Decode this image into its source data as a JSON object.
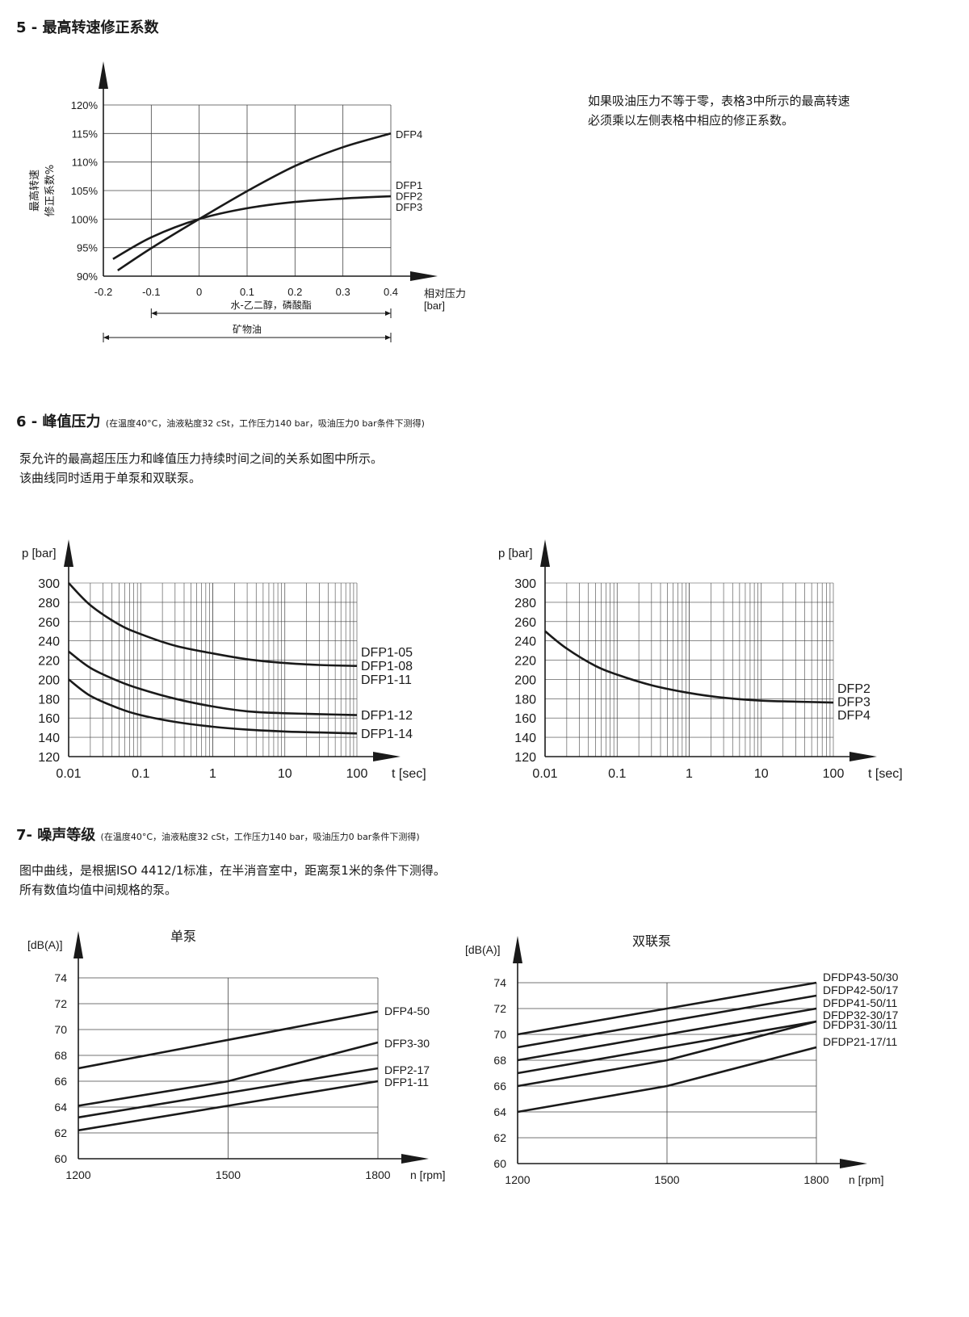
{
  "sections": {
    "s5": {
      "heading": "5 - 最高转速修正系数",
      "description": [
        "如果吸油压力不等于零，表格3中所示的最高转速",
        "必须乘以左侧表格中相应的修正系数。"
      ]
    },
    "s6": {
      "heading": "6 - 峰值压力",
      "note": "(在温度40°C，油液粘度32 cSt，工作压力140 bar，吸油压力0 bar条件下测得)",
      "description": [
        "泵允许的最高超压压力和峰值压力持续时间之间的关系如图中所示。",
        "该曲线同时适用于单泵和双联泵。"
      ]
    },
    "s7": {
      "heading": "7- 噪声等级",
      "note": "(在温度40°C，油液粘度32 cSt，工作压力140 bar，吸油压力0 bar条件下测得)",
      "description": [
        "图中曲线，是根据ISO 4412/1标准，在半消音室中，距离泵1米的条件下测得。",
        "所有数值均值中间规格的泵。"
      ]
    }
  },
  "chart_data": [
    {
      "id": "speed-correction",
      "type": "line",
      "title": "",
      "xlabel": "相对压力",
      "xunit": "[bar]",
      "ylabel": [
        "最高转速",
        "修正系数%"
      ],
      "xlim": [
        -0.2,
        0.4
      ],
      "ylim": [
        90,
        120
      ],
      "xticks": [
        -0.2,
        -0.1,
        0,
        0.1,
        0.2,
        0.3,
        0.4
      ],
      "xtick_labels": [
        "-0.2",
        "-0.1",
        "0",
        "0.1",
        "0.2",
        "0.3",
        "0.4"
      ],
      "yticks": [
        90,
        95,
        100,
        105,
        110,
        115,
        120
      ],
      "ytick_labels": [
        "90%",
        "95%",
        "100%",
        "105%",
        "110%",
        "115%",
        "120%"
      ],
      "grid": true,
      "series": [
        {
          "name": "DFP4",
          "labels": [
            "DFP4"
          ],
          "x": [
            -0.17,
            -0.1,
            0,
            0.1,
            0.2,
            0.3,
            0.4
          ],
          "y": [
            91,
            94.9,
            100,
            104.9,
            109.3,
            112.6,
            115
          ]
        },
        {
          "name": "DFP1 / DFP2 / DFP3",
          "labels": [
            "DFP1",
            "DFP2",
            "DFP3"
          ],
          "x": [
            -0.18,
            -0.1,
            0,
            0.1,
            0.2,
            0.3,
            0.4
          ],
          "y": [
            93,
            96.8,
            100,
            101.9,
            103,
            103.6,
            104
          ]
        }
      ],
      "ranges": [
        {
          "label": "水-乙二醇，磷酸酯",
          "from": -0.1,
          "to": 0.4
        },
        {
          "label": "矿物油",
          "from": -0.2,
          "to": 0.4
        }
      ]
    },
    {
      "id": "peak-pressure-single",
      "type": "line",
      "xscale": "log",
      "title": "",
      "xlabel": "t [sec]",
      "ylabel": "p [bar]",
      "xlim": [
        0.01,
        100
      ],
      "ylim": [
        120,
        300
      ],
      "xtick_labels": [
        "0.01",
        "0.1",
        "1",
        "10",
        "100"
      ],
      "yticks": [
        120,
        140,
        160,
        180,
        200,
        220,
        240,
        260,
        280,
        300
      ],
      "grid": true,
      "series": [
        {
          "name": "DFP1-05 / DFP1-08",
          "labels": [
            "DFP1-05",
            "DFP1-08"
          ],
          "x": [
            0.01,
            0.02,
            0.05,
            0.1,
            0.3,
            1,
            3,
            10,
            30,
            100
          ],
          "y": [
            300,
            277,
            257,
            247,
            235,
            227,
            221,
            217,
            215,
            214
          ]
        },
        {
          "name": "DFP1-11 / DFP1-12",
          "labels": [
            "DFP1-11",
            "DFP1-12"
          ],
          "x": [
            0.01,
            0.02,
            0.05,
            0.1,
            0.3,
            1,
            3,
            10,
            30,
            100
          ],
          "y": [
            229,
            212,
            198,
            190,
            180,
            172,
            167,
            165,
            164,
            163
          ]
        },
        {
          "name": "DFP1-14",
          "labels": [
            "DFP1-14"
          ],
          "x": [
            0.01,
            0.02,
            0.05,
            0.1,
            0.3,
            1,
            3,
            10,
            30,
            100
          ],
          "y": [
            200,
            183,
            170,
            163,
            156,
            151,
            148,
            146,
            145,
            144
          ]
        }
      ]
    },
    {
      "id": "peak-pressure-double",
      "type": "line",
      "xscale": "log",
      "title": "",
      "xlabel": "t [sec]",
      "ylabel": "p [bar]",
      "xlim": [
        0.01,
        100
      ],
      "ylim": [
        120,
        300
      ],
      "xtick_labels": [
        "0.01",
        "0.1",
        "1",
        "10",
        "100"
      ],
      "yticks": [
        120,
        140,
        160,
        180,
        200,
        220,
        240,
        260,
        280,
        300
      ],
      "grid": true,
      "series": [
        {
          "name": "DFP2 / DFP3 / DFP4",
          "labels": [
            "DFP2",
            "DFP3",
            "DFP4"
          ],
          "x": [
            0.01,
            0.02,
            0.05,
            0.1,
            0.3,
            1,
            3,
            10,
            30,
            100
          ],
          "y": [
            250,
            232,
            214,
            205,
            194,
            186,
            181,
            178,
            177,
            176
          ]
        }
      ]
    },
    {
      "id": "noise-single",
      "type": "line",
      "title": "单泵",
      "xlabel": "n [rpm]",
      "ylabel": "[dB(A)]",
      "xlim": [
        1200,
        1800
      ],
      "ylim": [
        60,
        74
      ],
      "xticks": [
        1200,
        1500,
        1800
      ],
      "xtick_labels": [
        "1200",
        "1500",
        "1800"
      ],
      "yticks": [
        60,
        62,
        64,
        66,
        68,
        70,
        72,
        74
      ],
      "grid": true,
      "series": [
        {
          "name": "DFP4-50",
          "labels": [
            "DFP4-50"
          ],
          "x": [
            1200,
            1500,
            1800
          ],
          "y": [
            67,
            69.2,
            71.4
          ]
        },
        {
          "name": "DFP3-30",
          "labels": [
            "DFP3-30"
          ],
          "x": [
            1200,
            1500,
            1800
          ],
          "y": [
            64.1,
            66,
            69
          ]
        },
        {
          "name": "DFP2-17",
          "labels": [
            "DFP2-17"
          ],
          "x": [
            1200,
            1500,
            1800
          ],
          "y": [
            63.2,
            65.1,
            67
          ]
        },
        {
          "name": "DFP1-11",
          "labels": [
            "DFP1-11"
          ],
          "x": [
            1200,
            1500,
            1800
          ],
          "y": [
            62.2,
            64.1,
            66
          ]
        }
      ]
    },
    {
      "id": "noise-double",
      "type": "line",
      "title": "双联泵",
      "xlabel": "n [rpm]",
      "ylabel": "[dB(A)]",
      "xlim": [
        1200,
        1800
      ],
      "ylim": [
        60,
        74
      ],
      "xticks": [
        1200,
        1500,
        1800
      ],
      "xtick_labels": [
        "1200",
        "1500",
        "1800"
      ],
      "yticks": [
        60,
        62,
        64,
        66,
        68,
        70,
        72,
        74
      ],
      "grid": true,
      "series": [
        {
          "name": "DFDP43-50/30",
          "labels": [
            "DFDP43-50/30"
          ],
          "x": [
            1200,
            1500,
            1800
          ],
          "y": [
            70,
            72,
            74
          ]
        },
        {
          "name": "DFDP42-50/17",
          "labels": [
            "DFDP42-50/17"
          ],
          "x": [
            1200,
            1500,
            1800
          ],
          "y": [
            69,
            71,
            73
          ]
        },
        {
          "name": "DFDP41-50/11",
          "labels": [
            "DFDP41-50/11"
          ],
          "x": [
            1200,
            1500,
            1800
          ],
          "y": [
            68,
            70,
            72
          ]
        },
        {
          "name": "DFDP32-30/17",
          "labels": [
            "DFDP32-30/17"
          ],
          "x": [
            1200,
            1500,
            1800
          ],
          "y": [
            67,
            69,
            71
          ]
        },
        {
          "name": "DFDP31-30/11",
          "labels": [
            "DFDP31-30/11"
          ],
          "x": [
            1200,
            1500,
            1800
          ],
          "y": [
            66,
            68,
            71
          ]
        },
        {
          "name": "DFDP21-17/11",
          "labels": [
            "DFDP21-17/11"
          ],
          "x": [
            1200,
            1500,
            1800
          ],
          "y": [
            64,
            66,
            69
          ]
        }
      ]
    }
  ]
}
